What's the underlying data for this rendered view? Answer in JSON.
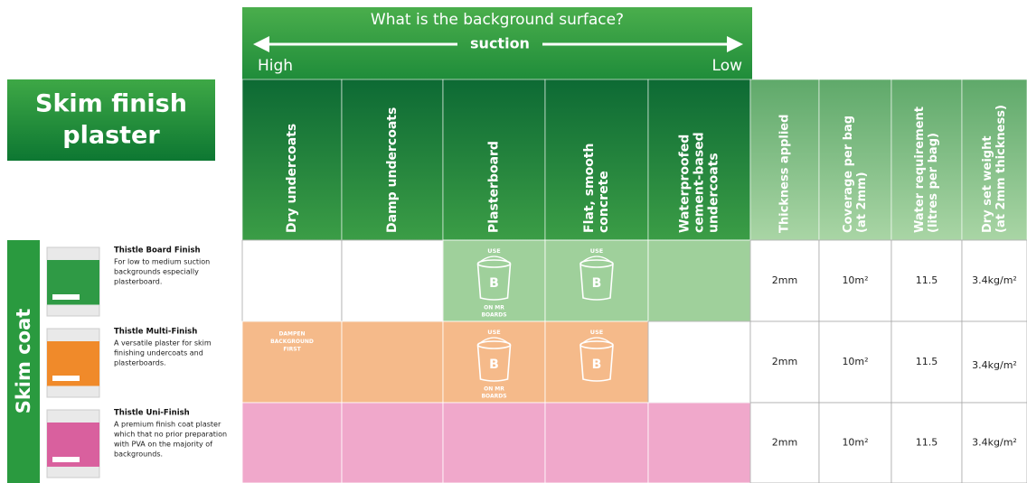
{
  "banner": {
    "title": "What is the background surface?",
    "subtitle": "suction",
    "high": "High",
    "low": "Low"
  },
  "product_title": [
    "Skim finish",
    "plaster"
  ],
  "group": "Skim coat",
  "columns": [
    [
      "Dry undercoats"
    ],
    [
      "Damp undercoats"
    ],
    [
      "Plasterboard"
    ],
    [
      "Flat, smooth",
      "concrete"
    ],
    [
      "Waterproofed",
      "cement-based",
      "undercoats"
    ],
    [
      "Thickness applied"
    ],
    [
      "Coverage per bag",
      "(at 2mm)"
    ],
    [
      "Water requirement",
      "(litres per bag)"
    ],
    [
      "Dry set weight",
      "(at 2mm thickness)"
    ]
  ],
  "rows": [
    {
      "name": "Thistle Board Finish",
      "description": [
        "For low to medium suction",
        "backgrounds especially",
        "plasterboard."
      ],
      "color": "#2f9a45",
      "surfaces": [
        null,
        null,
        {
          "fill": "#9fd09b",
          "use": "USE",
          "bucket": "B",
          "note": [
            "ON MR",
            "BOARDS"
          ]
        },
        {
          "fill": "#9fd09b",
          "use": "USE",
          "bucket": "B"
        },
        {
          "fill": "#9fd09b"
        }
      ],
      "values": [
        "2mm",
        "10m²",
        "11.5",
        "3.4kg/m²"
      ]
    },
    {
      "name": "Thistle Multi-Finish",
      "description": [
        "A versatile plaster for skim",
        "finishing undercoats and",
        "plasterboards."
      ],
      "color": "#f08a2a",
      "surfaces": [
        {
          "fill": "#f5ba8a",
          "text": [
            "DAMPEN",
            "BACKGROUND",
            "FIRST"
          ]
        },
        {
          "fill": "#f5ba8a"
        },
        {
          "fill": "#f5ba8a",
          "use": "USE",
          "bucket": "B",
          "note": [
            "ON MR",
            "BOARDS"
          ]
        },
        {
          "fill": "#f5ba8a",
          "use": "USE",
          "bucket": "B"
        },
        null
      ],
      "values": [
        "2mm",
        "10m²",
        "11.5",
        "3.4kg/m²"
      ]
    },
    {
      "name": "Thistle Uni-Finish",
      "description": [
        "A premium finish coat plaster",
        "which that no prior preparation",
        "with PVA on the majority of",
        "backgrounds."
      ],
      "color": "#d9609e",
      "surfaces": [
        {
          "fill": "#f0a8cb"
        },
        {
          "fill": "#f0a8cb"
        },
        {
          "fill": "#f0a8cb"
        },
        {
          "fill": "#f0a8cb"
        },
        {
          "fill": "#f0a8cb"
        }
      ],
      "values": [
        "2mm",
        "10m²",
        "11.5",
        "3.4kg/m²"
      ]
    }
  ]
}
